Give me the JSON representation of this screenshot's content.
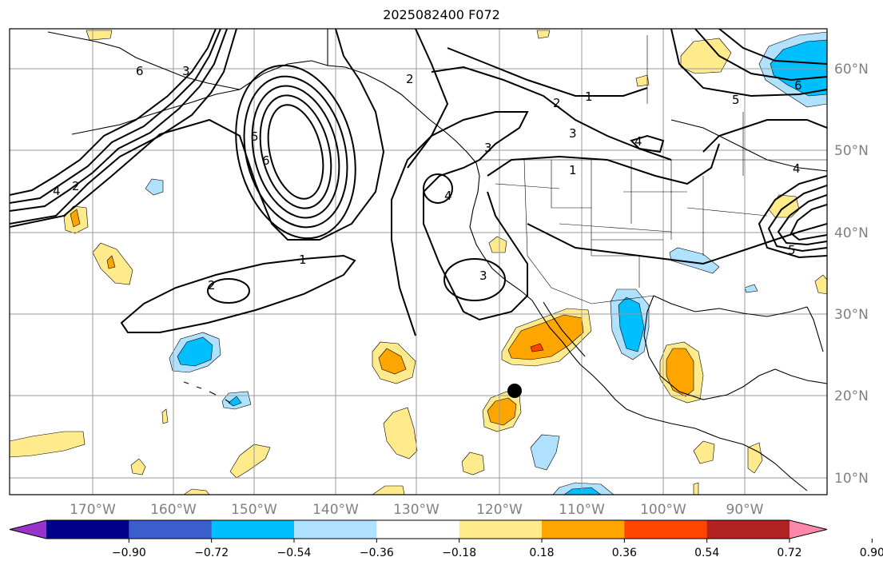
{
  "title": "2025082400 F072",
  "lon_labels": [
    "170°W",
    "160°W",
    "150°W",
    "140°W",
    "130°W",
    "120°W",
    "110°W",
    "100°W",
    "90°W"
  ],
  "lat_labels": [
    "60°N",
    "50°N",
    "40°N",
    "30°N",
    "20°N",
    "10°N"
  ],
  "colorbar": {
    "colors": [
      "#9933cc",
      "#00008b",
      "#3a5fcd",
      "#00bfff",
      "#b0e2ff",
      "#ffffff",
      "#ffea8c",
      "#ffa500",
      "#ff4500",
      "#b22222",
      "#ff88aa"
    ],
    "tick_labels": [
      "−0.90",
      "−0.72",
      "−0.54",
      "−0.36",
      "−0.18",
      "0.18",
      "0.36",
      "0.54",
      "0.72",
      "0.90"
    ]
  },
  "contour_labels": [
    "1",
    "2",
    "3",
    "4",
    "5",
    "6"
  ],
  "marker": "black-dot",
  "icons": [
    "map-grid",
    "coastline",
    "colorbar"
  ]
}
